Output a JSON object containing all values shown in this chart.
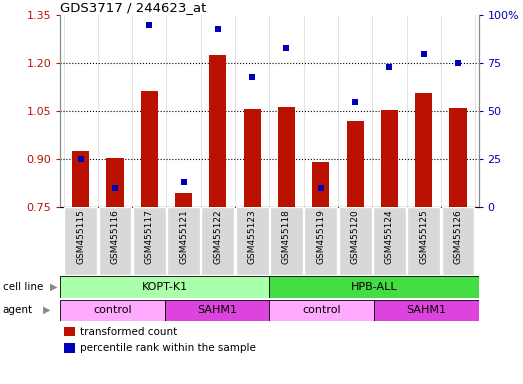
{
  "title": "GDS3717 / 244623_at",
  "samples": [
    "GSM455115",
    "GSM455116",
    "GSM455117",
    "GSM455121",
    "GSM455122",
    "GSM455123",
    "GSM455118",
    "GSM455119",
    "GSM455120",
    "GSM455124",
    "GSM455125",
    "GSM455126"
  ],
  "red_values": [
    0.925,
    0.905,
    1.115,
    0.795,
    1.225,
    1.058,
    1.065,
    0.893,
    1.02,
    1.055,
    1.107,
    1.06
  ],
  "blue_percentiles": [
    25,
    10,
    95,
    13,
    93,
    68,
    83,
    10,
    55,
    73,
    80,
    75
  ],
  "ylim_left": [
    0.75,
    1.35
  ],
  "ylim_right": [
    0,
    100
  ],
  "yticks_left": [
    0.75,
    0.9,
    1.05,
    1.2,
    1.35
  ],
  "yticks_right": [
    0,
    25,
    50,
    75,
    100
  ],
  "bar_color": "#bb1100",
  "dot_color": "#0000bb",
  "bar_bottom": 0.75,
  "cell_line_groups": [
    {
      "label": "KOPT-K1",
      "start": 0,
      "end": 6,
      "color": "#aaffaa"
    },
    {
      "label": "HPB-ALL",
      "start": 6,
      "end": 12,
      "color": "#44dd44"
    }
  ],
  "agent_groups": [
    {
      "label": "control",
      "start": 0,
      "end": 3,
      "color": "#ffaaff"
    },
    {
      "label": "SAHM1",
      "start": 3,
      "end": 6,
      "color": "#dd44dd"
    },
    {
      "label": "control",
      "start": 6,
      "end": 9,
      "color": "#ffaaff"
    },
    {
      "label": "SAHM1",
      "start": 9,
      "end": 12,
      "color": "#dd44dd"
    }
  ],
  "legend_red_label": "transformed count",
  "legend_blue_label": "percentile rank within the sample",
  "dotted_lines": [
    0.9,
    1.05,
    1.2
  ],
  "bar_width": 0.5
}
